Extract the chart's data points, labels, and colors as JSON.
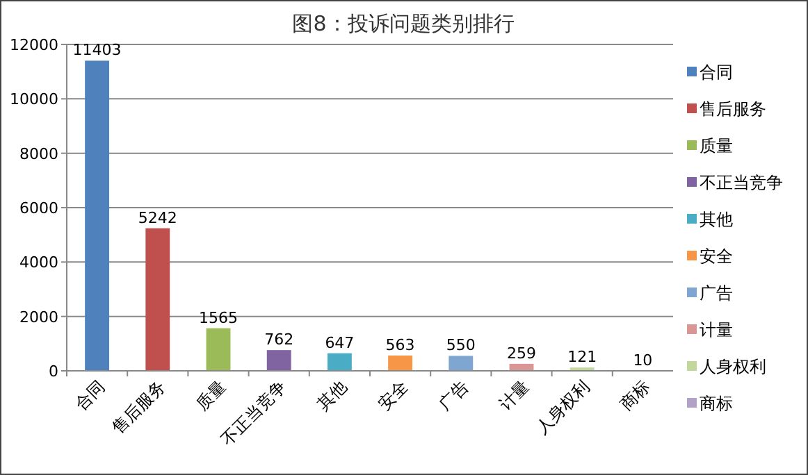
{
  "chart_data": {
    "type": "bar",
    "title": "图8：投诉问题类别排行",
    "categories": [
      "合同",
      "售后服务",
      "质量",
      "不正当竞争",
      "其他",
      "安全",
      "广告",
      "计量",
      "人身权利",
      "商标"
    ],
    "series": [
      {
        "name": "合同",
        "color": "#4f81bd",
        "values": [
          11403,
          null,
          null,
          null,
          null,
          null,
          null,
          null,
          null,
          null
        ]
      },
      {
        "name": "售后服务",
        "color": "#c0504d",
        "values": [
          null,
          5242,
          null,
          null,
          null,
          null,
          null,
          null,
          null,
          null
        ]
      },
      {
        "name": "质量",
        "color": "#9bbb59",
        "values": [
          null,
          null,
          1565,
          null,
          null,
          null,
          null,
          null,
          null,
          null
        ]
      },
      {
        "name": "不正当竞争",
        "color": "#8064a2",
        "values": [
          null,
          null,
          null,
          762,
          null,
          null,
          null,
          null,
          null,
          null
        ]
      },
      {
        "name": "其他",
        "color": "#4bacc6",
        "values": [
          null,
          null,
          null,
          null,
          647,
          null,
          null,
          null,
          null,
          null
        ]
      },
      {
        "name": "安全",
        "color": "#f79646",
        "values": [
          null,
          null,
          null,
          null,
          null,
          563,
          null,
          null,
          null,
          null
        ]
      },
      {
        "name": "广告",
        "color": "#7ea6d0",
        "values": [
          null,
          null,
          null,
          null,
          null,
          null,
          550,
          null,
          null,
          null
        ]
      },
      {
        "name": "计量",
        "color": "#d99694",
        "values": [
          null,
          null,
          null,
          null,
          null,
          null,
          null,
          259,
          null,
          null
        ]
      },
      {
        "name": "人身权利",
        "color": "#c3d69b",
        "values": [
          null,
          null,
          null,
          null,
          null,
          null,
          null,
          null,
          121,
          null
        ]
      },
      {
        "name": "商标",
        "color": "#b3a2c7",
        "values": [
          null,
          null,
          null,
          null,
          null,
          null,
          null,
          null,
          null,
          10
        ]
      }
    ],
    "ylim": [
      0,
      12000
    ],
    "yticks": [
      0,
      2000,
      4000,
      6000,
      8000,
      10000,
      12000
    ],
    "grid": "y",
    "legend": "right",
    "data_labels": true
  }
}
